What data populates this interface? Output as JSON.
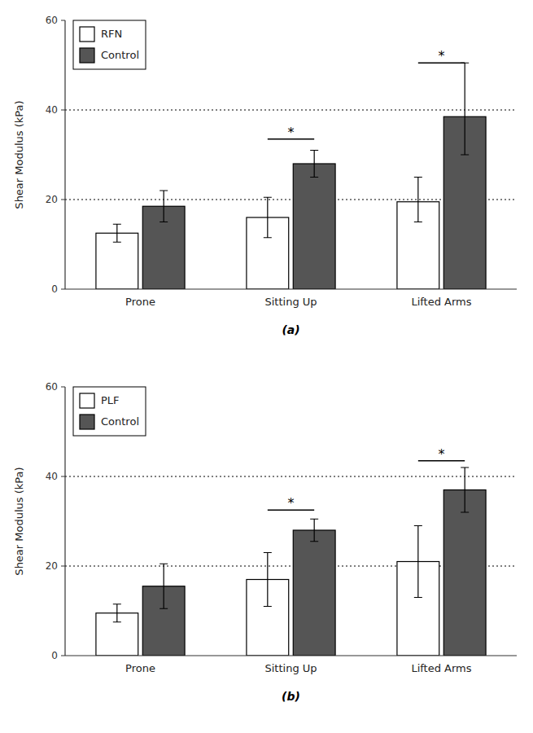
{
  "chart_data": [
    {
      "type": "bar",
      "subtitle": "(a)",
      "y_label": "Shear Modulus (kPa)",
      "categories": [
        "Prone",
        "Sitting Up",
        "Lifted Arms"
      ],
      "series": [
        {
          "name": "RFN",
          "color": "#ffffff",
          "values": [
            12.5,
            16.0,
            19.5
          ],
          "errors_low": [
            2.0,
            4.5,
            4.5
          ],
          "errors_high": [
            2.0,
            4.5,
            5.5
          ]
        },
        {
          "name": "Control",
          "color": "#555555",
          "values": [
            18.5,
            28.0,
            38.5
          ],
          "errors_low": [
            3.5,
            3.0,
            8.5
          ],
          "errors_high": [
            3.5,
            3.0,
            12.0
          ]
        }
      ],
      "reference_lines": [
        20,
        40
      ],
      "annotations": [
        {
          "text": "*",
          "category": "Sitting Up",
          "y": 33.5
        },
        {
          "text": "*",
          "category": "Lifted Arms",
          "y": 50.5
        }
      ],
      "ylim": [
        0,
        60
      ],
      "yticks": [
        0,
        20,
        40,
        60
      ],
      "legend": "upper left"
    },
    {
      "type": "bar",
      "subtitle": "(b)",
      "y_label": "Shear Modulus (kPa)",
      "categories": [
        "Prone",
        "Sitting Up",
        "Lifted Arms"
      ],
      "series": [
        {
          "name": "PLF",
          "color": "#ffffff",
          "values": [
            9.5,
            17.0,
            21.0
          ],
          "errors_low": [
            2.0,
            6.0,
            8.0
          ],
          "errors_high": [
            2.0,
            6.0,
            8.0
          ]
        },
        {
          "name": "Control",
          "color": "#555555",
          "values": [
            15.5,
            28.0,
            37.0
          ],
          "errors_low": [
            5.0,
            2.5,
            5.0
          ],
          "errors_high": [
            5.0,
            2.5,
            5.0
          ]
        }
      ],
      "reference_lines": [
        20,
        40
      ],
      "annotations": [
        {
          "text": "*",
          "category": "Sitting Up",
          "y": 32.5
        },
        {
          "text": "*",
          "category": "Lifted Arms",
          "y": 43.5
        }
      ],
      "ylim": [
        0,
        60
      ],
      "yticks": [
        0,
        20,
        40,
        60
      ],
      "legend": "upper left"
    }
  ]
}
